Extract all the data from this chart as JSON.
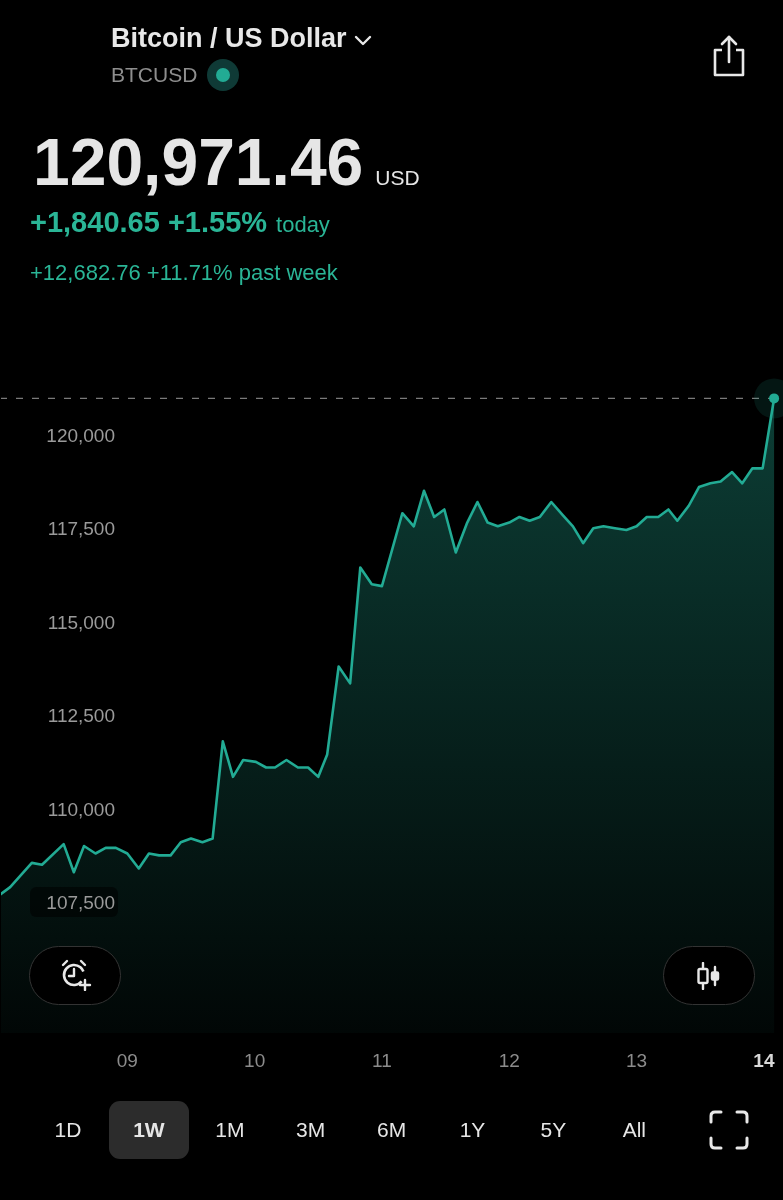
{
  "chart_data": {
    "type": "area",
    "title": "Bitcoin / US Dollar",
    "subtitle": "BTCUSD",
    "annotations": [
      "120,971.46",
      "USD",
      "+1,840.65 +1.55%",
      "today",
      "+12,682.76 +11.71% past week",
      "1D",
      "1W",
      "1M",
      "3M",
      "6M",
      "1Y",
      "5Y",
      "All"
    ],
    "x": [
      8.0,
      8.08,
      8.25,
      8.33,
      8.5,
      8.58,
      8.66,
      8.75,
      8.83,
      8.91,
      9.0,
      9.09,
      9.17,
      9.25,
      9.34,
      9.42,
      9.5,
      9.59,
      9.67,
      9.75,
      9.83,
      9.91,
      10.01,
      10.09,
      10.16,
      10.25,
      10.34,
      10.42,
      10.5,
      10.57,
      10.66,
      10.75,
      10.83,
      10.92,
      11.0,
      11.16,
      11.25,
      11.33,
      11.41,
      11.49,
      11.58,
      11.67,
      11.75,
      11.83,
      11.91,
      12.0,
      12.08,
      12.16,
      12.24,
      12.33,
      12.42,
      12.5,
      12.58,
      12.66,
      12.74,
      12.83,
      12.92,
      13.0,
      13.08,
      13.17,
      13.25,
      13.32,
      13.41,
      13.49,
      13.58,
      13.66,
      13.75,
      13.83,
      13.91,
      13.99,
      14.08
    ],
    "values": [
      107700,
      107900,
      108550,
      108500,
      109050,
      108300,
      109000,
      108800,
      108950,
      108950,
      108800,
      108400,
      108800,
      108750,
      108750,
      109100,
      109200,
      109100,
      109200,
      111800,
      110850,
      111300,
      111250,
      111100,
      111100,
      111300,
      111100,
      111100,
      110850,
      111450,
      113800,
      113350,
      116450,
      116000,
      115950,
      117900,
      117550,
      118500,
      117800,
      118000,
      116850,
      117650,
      118200,
      117650,
      117550,
      117650,
      117800,
      117700,
      117800,
      118200,
      117850,
      117550,
      117100,
      117500,
      117550,
      117500,
      117450,
      117550,
      117800,
      117800,
      118000,
      117700,
      118100,
      118600,
      118700,
      118750,
      119000,
      118700,
      119100,
      119100,
      120970
    ],
    "color": "#22ab94",
    "xlim": [
      8.0,
      14.15
    ],
    "xticks": [
      {
        "value": 9,
        "label": "09"
      },
      {
        "value": 10,
        "label": "10"
      },
      {
        "value": 11,
        "label": "11"
      },
      {
        "value": 12,
        "label": "12"
      },
      {
        "value": 13,
        "label": "13"
      },
      {
        "value": 14,
        "label": "14"
      }
    ],
    "ylim": [
      104000,
      122800
    ],
    "yticks": [
      {
        "value": 107500,
        "label": "107,500"
      },
      {
        "value": 110000,
        "label": "110,000"
      },
      {
        "value": 112500,
        "label": "112,500"
      },
      {
        "value": 115000,
        "label": "115,000"
      },
      {
        "value": 117500,
        "label": "117,500"
      },
      {
        "value": 120000,
        "label": "120,000"
      }
    ],
    "ref_lines": [
      {
        "axis": "y",
        "value": 120971.46,
        "color": "#7a7a7a",
        "line_style": "dashed"
      }
    ]
  }
}
